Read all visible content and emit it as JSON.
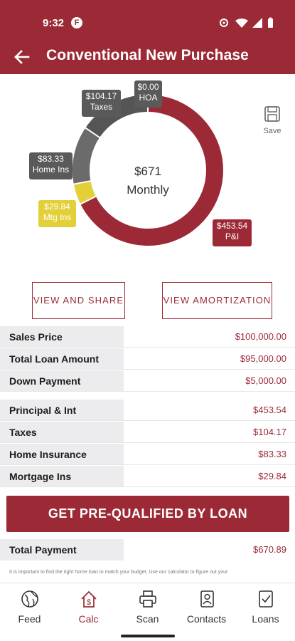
{
  "status_bar": {
    "time": "9:32",
    "app_badge": "F"
  },
  "header": {
    "title": "Conventional New Purchase"
  },
  "chart": {
    "center_amount": "$671",
    "center_label": "Monthly",
    "labels": {
      "taxes_amount": "$104.17",
      "taxes_name": "Taxes",
      "hoa_amount": "$0.00",
      "hoa_name": "HOA",
      "home_amount": "$83.33",
      "home_name": "Home Ins",
      "mtg_amount": "$29.84",
      "mtg_name": "Mtg Ins",
      "pi_amount": "$453.54",
      "pi_name": "P&I"
    },
    "save_label": "Save"
  },
  "chart_data": {
    "type": "pie",
    "categories": [
      "P&I",
      "Mtg Ins",
      "Home Ins",
      "Taxes",
      "HOA"
    ],
    "values": [
      453.54,
      29.84,
      83.33,
      104.17,
      0.0
    ],
    "colors": [
      "#9b2a36",
      "#e3cf37",
      "#6b6b6b",
      "#555555",
      "#555555"
    ],
    "center_text": "$671 Monthly"
  },
  "buttons": {
    "view_share": "VIEW AND SHARE",
    "view_amortization": "VIEW AMORTIZATION"
  },
  "loan_rows": [
    {
      "label": "Sales Price",
      "value": "$100,000.00"
    },
    {
      "label": "Total Loan Amount",
      "value": "$95,000.00"
    },
    {
      "label": "Down Payment",
      "value": "$5,000.00"
    }
  ],
  "payment_rows": [
    {
      "label": "Principal & Int",
      "value": "$453.54"
    },
    {
      "label": "Taxes",
      "value": "$104.17"
    },
    {
      "label": "Home Insurance",
      "value": "$83.33"
    },
    {
      "label": "Mortgage Ins",
      "value": "$29.84"
    }
  ],
  "cta": {
    "label": "GET PRE-QUALIFIED BY LOAN"
  },
  "total": {
    "label": "Total Payment",
    "value": "$670.89"
  },
  "disclaimer": "It is important to find the right home loan to match your budget. Use our calculator to figure out your",
  "nav": {
    "items": [
      {
        "label": "Feed",
        "icon": "globe-icon"
      },
      {
        "label": "Calc",
        "icon": "house-dollar-icon"
      },
      {
        "label": "Scan",
        "icon": "printer-icon"
      },
      {
        "label": "Contacts",
        "icon": "contact-card-icon"
      },
      {
        "label": "Loans",
        "icon": "document-check-icon"
      }
    ],
    "active": "Calc"
  },
  "colors": {
    "brand": "#9b2a36",
    "accent_yellow": "#e3cf37",
    "gray": "#5a5a5a"
  }
}
